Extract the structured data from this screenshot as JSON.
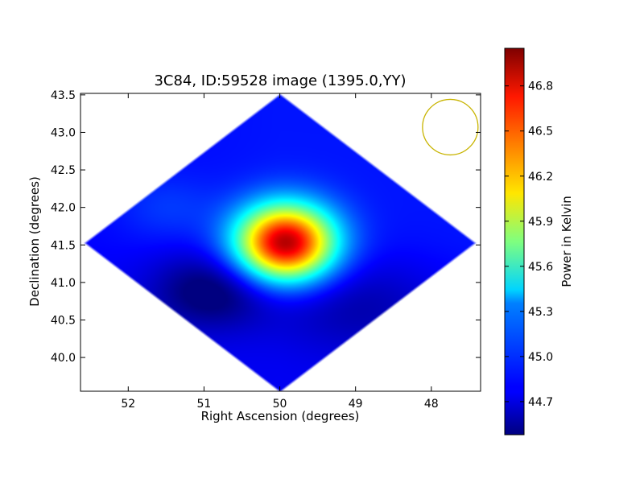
{
  "chart_data": {
    "type": "heatmap",
    "title": "3C84, ID:59528 image (1395.0,YY)",
    "xlabel": "Right Ascension (degrees)",
    "ylabel": "Declination (degrees)",
    "xlim": [
      52.63,
      47.35
    ],
    "ylim": [
      39.55,
      43.52
    ],
    "x_ticks": [
      {
        "value": 52,
        "label": "52"
      },
      {
        "value": 51,
        "label": "51"
      },
      {
        "value": 50,
        "label": "50"
      },
      {
        "value": 49,
        "label": "49"
      },
      {
        "value": 48,
        "label": "48"
      }
    ],
    "y_ticks": [
      {
        "value": 40.0,
        "label": "40.0"
      },
      {
        "value": 40.5,
        "label": "40.5"
      },
      {
        "value": 41.0,
        "label": "41.0"
      },
      {
        "value": 41.5,
        "label": "41.5"
      },
      {
        "value": 42.0,
        "label": "42.0"
      },
      {
        "value": 42.5,
        "label": "42.5"
      },
      {
        "value": 43.0,
        "label": "43.0"
      },
      {
        "value": 43.5,
        "label": "43.5"
      }
    ],
    "colorbar": {
      "label": "Power in Kelvin",
      "range": [
        44.48,
        47.05
      ],
      "ticks": [
        {
          "value": 44.7,
          "label": "44.7"
        },
        {
          "value": 45.0,
          "label": "45.0"
        },
        {
          "value": 45.3,
          "label": "45.3"
        },
        {
          "value": 45.6,
          "label": "45.6"
        },
        {
          "value": 45.9,
          "label": "45.9"
        },
        {
          "value": 46.2,
          "label": "46.2"
        },
        {
          "value": 46.5,
          "label": "46.5"
        },
        {
          "value": 46.8,
          "label": "46.8"
        }
      ]
    },
    "map": {
      "center": {
        "ra": 50.0,
        "dec": 41.53
      },
      "half_extent_ra": 2.6,
      "half_extent_dec": 2.0,
      "background_k": 44.85,
      "peak": {
        "ra": 49.93,
        "dec": 41.53,
        "value_k": 46.95
      },
      "features": [
        {
          "ra": 49.93,
          "dec": 41.53,
          "sigma_ra": 0.38,
          "sigma_dec": 0.3,
          "delta_k": 2.1
        },
        {
          "ra": 50.9,
          "dec": 40.9,
          "sigma_ra": 0.55,
          "sigma_dec": 0.35,
          "delta_k": -0.4
        },
        {
          "ra": 49.0,
          "dec": 40.7,
          "sigma_ra": 0.8,
          "sigma_dec": 0.45,
          "delta_k": -0.22
        },
        {
          "ra": 51.5,
          "dec": 42.0,
          "sigma_ra": 0.45,
          "sigma_dec": 0.3,
          "delta_k": 0.12
        }
      ]
    },
    "beam": {
      "ra": 47.75,
      "dec": 43.07,
      "radius_deg": 0.37,
      "color": "#c8b400"
    }
  }
}
